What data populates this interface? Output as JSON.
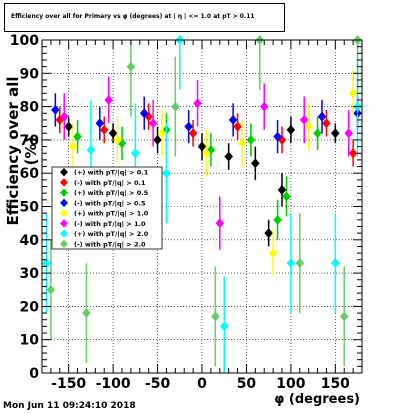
{
  "title": "Efficiency over all for Primary vs φ (degrees) at | η | <= 1.0 at pT > 0.11",
  "xlabel": "φ (degrees)",
  "ylabel": "Efficiency over all (%)",
  "timestamp": "Mon Jun 11 09:24:10 2018",
  "chart_data": {
    "type": "scatter",
    "title": "Efficiency over all for Primary vs φ (degrees) at | η | <= 1.0 at pT > 0.11",
    "xlabel": "φ (degrees)",
    "ylabel": "Efficiency over all (%)",
    "xlim": [
      -180,
      180
    ],
    "ylim": [
      0,
      100
    ],
    "xticks": [
      -150,
      -100,
      -50,
      0,
      50,
      100,
      150
    ],
    "yticks": [
      0,
      10,
      20,
      30,
      40,
      50,
      60,
      70,
      80,
      90,
      100
    ],
    "grid": true,
    "legend_position": "left-middle",
    "legend_entries": [
      {
        "label": "(+) with pT/|q| > 0.1",
        "color": "#000000"
      },
      {
        "label": "(-) with pT/|q| > 0.1",
        "color": "#ff0000"
      },
      {
        "label": "(+) with pT/|q| > 0.5",
        "color": "#00cc00"
      },
      {
        "label": "(-) with pT/|q| > 0.5",
        "color": "#0000ff"
      },
      {
        "label": "(+) with pT/|q| > 1.0",
        "color": "#ffff00"
      },
      {
        "label": "(-) with pT/|q| > 1.0",
        "color": "#ff00ff"
      },
      {
        "label": "(+) with pT/|q| > 2.0",
        "color": "#00ffff"
      },
      {
        "label": "(-) with pT/|q| > 2.0",
        "color": "#66cc66"
      }
    ],
    "series": [
      {
        "name": "(+) with pT/|q| > 0.1",
        "color": "#000000",
        "marker": "diamond",
        "x": [
          -150,
          -100,
          -50,
          0,
          30,
          60,
          75,
          90,
          100,
          150
        ],
        "y": [
          74,
          72,
          70,
          68,
          65,
          63,
          42,
          55,
          73,
          72
        ],
        "err": [
          3,
          3,
          4,
          4,
          4,
          5,
          4,
          5,
          4,
          3
        ]
      },
      {
        "name": "(-) with pT/|q| > 0.1",
        "color": "#ff0000",
        "marker": "diamond",
        "x": [
          -160,
          -110,
          -60,
          -10,
          40,
          90,
          140,
          170
        ],
        "y": [
          76,
          73,
          77,
          72,
          74,
          70,
          75,
          66
        ],
        "err": [
          4,
          4,
          4,
          4,
          4,
          4,
          4,
          4
        ]
      },
      {
        "name": "(+) with pT/|q| > 0.5",
        "color": "#00cc00",
        "marker": "diamond",
        "x": [
          -140,
          -90,
          -40,
          10,
          55,
          85,
          95,
          130
        ],
        "y": [
          71,
          69,
          73,
          67,
          70,
          46,
          53,
          72
        ],
        "err": [
          5,
          5,
          5,
          5,
          5,
          6,
          6,
          5
        ]
      },
      {
        "name": "(-) with pT/|q| > 0.5",
        "color": "#0000ff",
        "marker": "diamond",
        "x": [
          -165,
          -115,
          -65,
          -15,
          35,
          85,
          135,
          175
        ],
        "y": [
          79,
          75,
          78,
          74,
          76,
          71,
          77,
          78
        ],
        "err": [
          5,
          5,
          5,
          5,
          5,
          5,
          5,
          5
        ]
      },
      {
        "name": "(+) with pT/|q| > 1.0",
        "color": "#ffff00",
        "marker": "diamond",
        "x": [
          -145,
          -95,
          -45,
          5,
          45,
          80,
          120,
          170
        ],
        "y": [
          68,
          70,
          72,
          66,
          69,
          36,
          74,
          84
        ],
        "err": [
          7,
          7,
          7,
          7,
          7,
          7,
          7,
          7
        ]
      },
      {
        "name": "(-) with pT/|q| > 1.0",
        "color": "#ff00ff",
        "marker": "diamond",
        "x": [
          -155,
          -105,
          -55,
          -5,
          20,
          70,
          115,
          165
        ],
        "y": [
          77,
          82,
          75,
          81,
          45,
          80,
          76,
          72
        ],
        "err": [
          7,
          7,
          7,
          7,
          8,
          7,
          7,
          7
        ]
      },
      {
        "name": "(+) with pT/|q| > 2.0",
        "color": "#00ffff",
        "marker": "diamond",
        "x": [
          -175,
          -125,
          -75,
          -25,
          -40,
          25,
          100,
          150,
          175
        ],
        "y": [
          33,
          67,
          66,
          100,
          60,
          14,
          33,
          33,
          80
        ],
        "err": [
          15,
          15,
          15,
          15,
          15,
          15,
          15,
          15,
          15
        ]
      },
      {
        "name": "(-) with pT/|q| > 2.0",
        "color": "#66cc66",
        "marker": "diamond",
        "x": [
          -170,
          -130,
          -80,
          -30,
          15,
          65,
          110,
          160,
          175
        ],
        "y": [
          25,
          18,
          92,
          80,
          17,
          100,
          33,
          17,
          100
        ],
        "err": [
          15,
          15,
          15,
          15,
          15,
          15,
          15,
          15,
          15
        ]
      }
    ]
  }
}
